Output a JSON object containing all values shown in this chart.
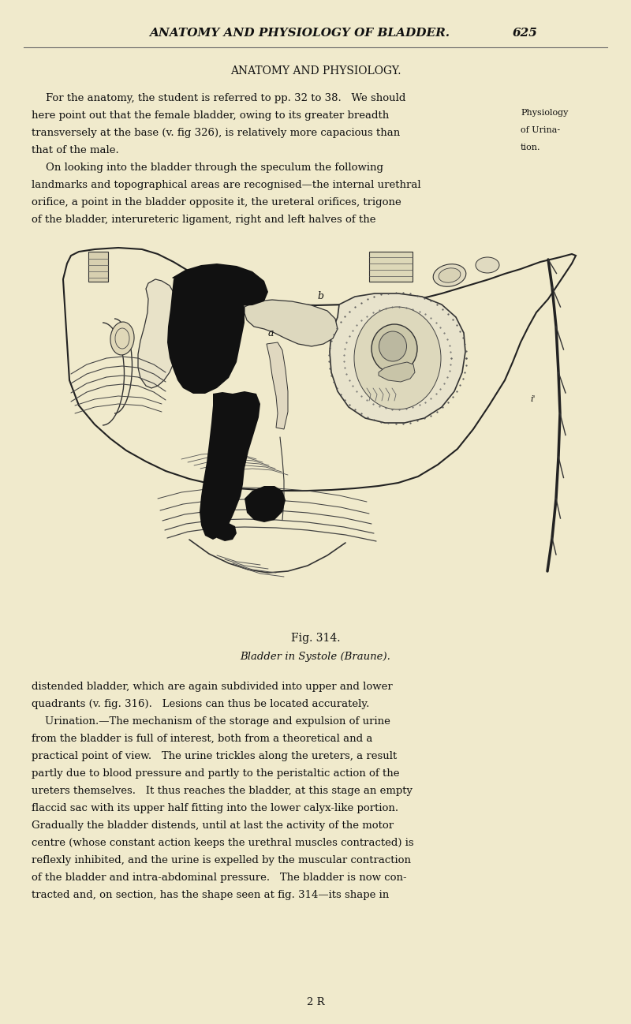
{
  "bg_color": "#f0eacc",
  "page_width": 8.0,
  "page_height": 12.98,
  "header_title": "ANATOMY AND PHYSIOLOGY OF BLADDER.",
  "header_page": "625",
  "section_title": "ANATOMY AND PHYSIOLOGY.",
  "para1_lines": [
    "For the anatomy, the student is referred to pp. 32 to 38.   We should",
    "here point out that the female bladder, owing to its greater breadth",
    "transversely at the base (v. fig 326), is relatively more capacious than",
    "that of the male."
  ],
  "sidebar_lines": [
    "Physiology",
    "of Urina-",
    "tion."
  ],
  "para2_lines": [
    "On looking into the bladder through the speculum the following",
    "landmarks and topographical areas are recognised—the internal urethral",
    "orifice, a point in the bladder opposite it, the ureteral orifices, trigone",
    "of the bladder, interureteric ligament, right and left halves of the"
  ],
  "fig_caption_1": "Fig. 314.",
  "fig_caption_2": "Bladder in Systole (Braune).",
  "para3_lines": [
    "distended bladder, which are again subdivided into upper and lower",
    "quadrants (v. fig. 316).   Lesions can thus be located accurately.",
    "    Urination.—The mechanism of the storage and expulsion of urine",
    "from the bladder is full of interest, both from a theoretical and a",
    "practical point of view.   The urine trickles along the ureters, a result",
    "partly due to blood pressure and partly to the peristaltic action of the",
    "ureters themselves.   It thus reaches the bladder, at this stage an empty",
    "flaccid sac with its upper half fitting into the lower calyx-like portion.",
    "Gradually the bladder distends, until at last the activity of the motor",
    "centre (whose constant action keeps the urethral muscles contracted) is",
    "reflexly inhibited, and the urine is expelled by the muscular contraction",
    "of the bladder and intra-abdominal pressure.   The bladder is now con-",
    "tracted and, on section, has the shape seen at fig. 314—its shape in"
  ],
  "footer_text": "2 R",
  "text_color": "#111111"
}
